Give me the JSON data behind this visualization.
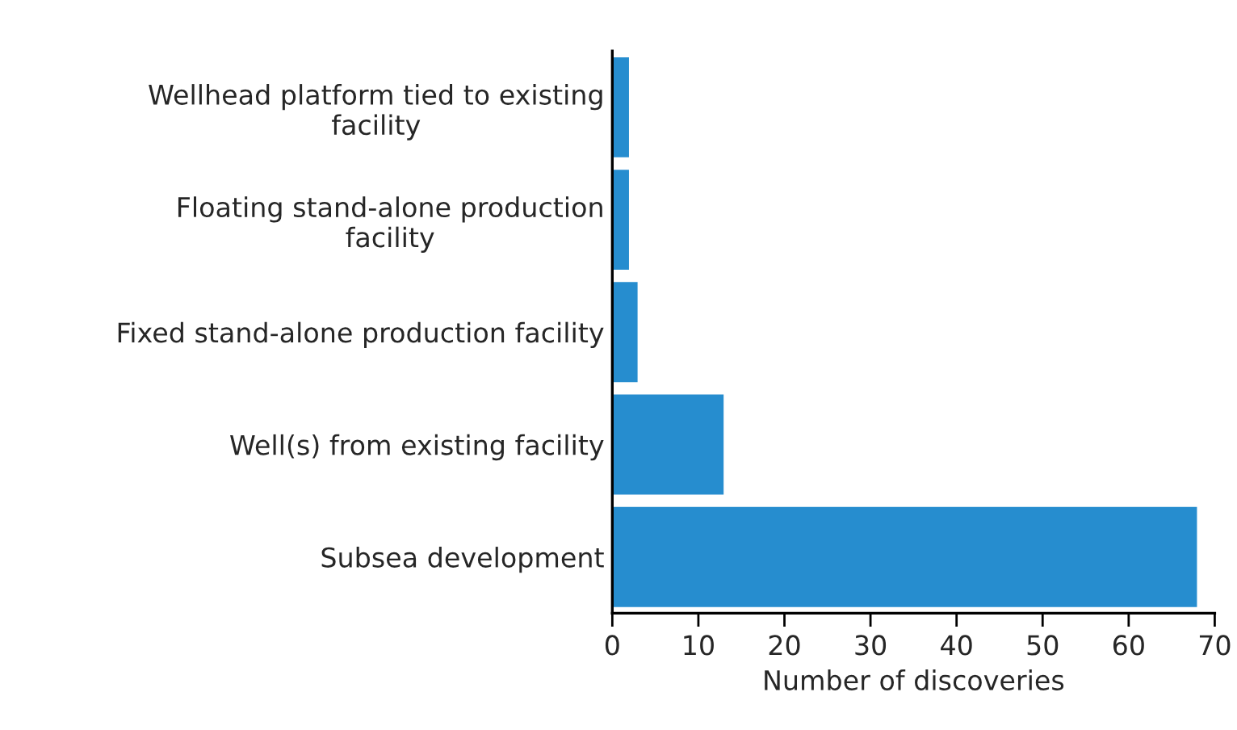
{
  "chart_data": {
    "type": "bar",
    "orientation": "horizontal",
    "xlabel": "Number of discoveries",
    "categories": [
      "Wellhead platform tied to existing\nfacility",
      "Floating stand-alone production\nfacility",
      "Fixed stand-alone production facility",
      "Well(s) from existing facility",
      "Subsea development"
    ],
    "values": [
      2,
      2,
      3,
      13,
      68
    ],
    "color": "#268dcf",
    "xlim": [
      0,
      70
    ],
    "xticks": [
      0,
      10,
      20,
      30,
      40,
      50,
      60,
      70
    ],
    "grid": false,
    "legend": false
  }
}
